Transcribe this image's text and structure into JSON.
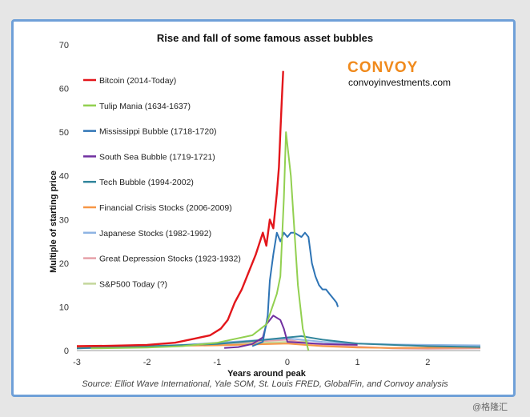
{
  "brand": {
    "name": "CONVOY",
    "url": "convoyinvestments.com"
  },
  "source_note": "Source: Elliot Wave International, Yale SOM, St. Louis FRED, GlobalFin, and Convoy analysis",
  "watermark": "@格隆汇",
  "colors": {
    "bitcoin": "#e3161b",
    "tulip": "#92d050",
    "mississippi": "#2e74b5",
    "southsea": "#7030a0",
    "tech": "#31859c",
    "financial": "#f79646",
    "japanese": "#8eb4e3",
    "depression": "#e6a0a8",
    "sp500": "#c4d79b"
  },
  "chart_data": {
    "type": "line",
    "title": "Rise and fall of some famous asset bubbles",
    "xlabel": "Years around peak",
    "ylabel": "Multiple of starting price",
    "xlim": [
      -3,
      2.75
    ],
    "ylim": [
      0,
      70
    ],
    "xticks": [
      -3,
      -2,
      -1,
      0,
      1,
      2
    ],
    "yticks": [
      0,
      10,
      20,
      30,
      40,
      50,
      60,
      70
    ],
    "grid": false,
    "legend_position": "top-left",
    "series": [
      {
        "name": "Bitcoin (2014-Today)",
        "color_key": "bitcoin",
        "points": [
          [
            -3,
            1
          ],
          [
            -2.5,
            1.1
          ],
          [
            -2,
            1.3
          ],
          [
            -1.6,
            1.8
          ],
          [
            -1.3,
            2.8
          ],
          [
            -1.1,
            3.5
          ],
          [
            -0.95,
            5
          ],
          [
            -0.85,
            7
          ],
          [
            -0.75,
            11
          ],
          [
            -0.65,
            14
          ],
          [
            -0.55,
            18
          ],
          [
            -0.45,
            22
          ],
          [
            -0.35,
            27
          ],
          [
            -0.3,
            24
          ],
          [
            -0.25,
            30
          ],
          [
            -0.2,
            28
          ],
          [
            -0.15,
            36
          ],
          [
            -0.12,
            42
          ],
          [
            -0.1,
            50
          ],
          [
            -0.08,
            57
          ],
          [
            -0.06,
            64
          ]
        ]
      },
      {
        "name": "Tulip Mania (1634-1637)",
        "color_key": "tulip",
        "points": [
          [
            -2.8,
            0.5
          ],
          [
            -2,
            0.7
          ],
          [
            -1.5,
            1
          ],
          [
            -1,
            1.8
          ],
          [
            -0.5,
            3.5
          ],
          [
            -0.3,
            6
          ],
          [
            -0.15,
            13
          ],
          [
            -0.1,
            17
          ],
          [
            -0.05,
            35
          ],
          [
            -0.02,
            50
          ],
          [
            0.05,
            40
          ],
          [
            0.15,
            15
          ],
          [
            0.22,
            5
          ],
          [
            0.3,
            0
          ]
        ]
      },
      {
        "name": "Mississippi Bubble (1718-1720)",
        "color_key": "mississippi",
        "points": [
          [
            -0.5,
            1
          ],
          [
            -0.35,
            2
          ],
          [
            -0.28,
            8
          ],
          [
            -0.25,
            16
          ],
          [
            -0.2,
            22
          ],
          [
            -0.15,
            27
          ],
          [
            -0.1,
            25
          ],
          [
            -0.05,
            27
          ],
          [
            0,
            26
          ],
          [
            0.05,
            27
          ],
          [
            0.1,
            27
          ],
          [
            0.2,
            26
          ],
          [
            0.25,
            27
          ],
          [
            0.3,
            26
          ],
          [
            0.35,
            20
          ],
          [
            0.4,
            17
          ],
          [
            0.45,
            15
          ],
          [
            0.5,
            14
          ],
          [
            0.55,
            14
          ],
          [
            0.6,
            13
          ],
          [
            0.65,
            12
          ],
          [
            0.7,
            11
          ],
          [
            0.72,
            10
          ]
        ]
      },
      {
        "name": "South Sea Bubble (1719-1721)",
        "color_key": "southsea",
        "points": [
          [
            -0.9,
            0.6
          ],
          [
            -0.7,
            0.8
          ],
          [
            -0.5,
            1.5
          ],
          [
            -0.35,
            3
          ],
          [
            -0.3,
            6
          ],
          [
            -0.2,
            8
          ],
          [
            -0.1,
            7
          ],
          [
            -0.05,
            5
          ],
          [
            0,
            2
          ],
          [
            0.2,
            1.8
          ],
          [
            0.5,
            1.5
          ],
          [
            1,
            1.3
          ]
        ]
      },
      {
        "name": "Tech Bubble (1994-2002)",
        "color_key": "tech",
        "points": [
          [
            -3,
            0.5
          ],
          [
            -2,
            1
          ],
          [
            -1,
            1.5
          ],
          [
            -0.5,
            2.2
          ],
          [
            0,
            3
          ],
          [
            0.2,
            3.3
          ],
          [
            0.5,
            2.5
          ],
          [
            1,
            1.6
          ],
          [
            2,
            1
          ],
          [
            2.75,
            0.8
          ]
        ]
      },
      {
        "name": "Financial Crisis Stocks (2006-2009)",
        "color_key": "financial",
        "points": [
          [
            -3,
            0.7
          ],
          [
            -2,
            1
          ],
          [
            -1,
            1.2
          ],
          [
            0,
            1.6
          ],
          [
            0.5,
            1
          ],
          [
            1,
            0.7
          ],
          [
            1.5,
            0.6
          ],
          [
            2.75,
            0.7
          ]
        ]
      },
      {
        "name": "Japanese Stocks (1982-1992)",
        "color_key": "japanese",
        "points": [
          [
            -3,
            0.5
          ],
          [
            -2,
            0.8
          ],
          [
            -1,
            1.8
          ],
          [
            0,
            2.8
          ],
          [
            0.5,
            2
          ],
          [
            1,
            1.6
          ],
          [
            1.5,
            1.4
          ],
          [
            2,
            1.3
          ],
          [
            2.75,
            1.2
          ]
        ]
      },
      {
        "name": "Great Depression Stocks (1923-1932)",
        "color_key": "depression",
        "points": [
          [
            -3,
            0.6
          ],
          [
            -2,
            0.9
          ],
          [
            -1,
            1.5
          ],
          [
            0,
            2.5
          ],
          [
            0.3,
            1.6
          ],
          [
            0.6,
            1.2
          ],
          [
            1,
            0.9
          ],
          [
            1.5,
            0.5
          ],
          [
            2,
            0.4
          ],
          [
            2.75,
            0.5
          ]
        ]
      },
      {
        "name": "S&P500 Today (?)",
        "color_key": "sp500",
        "points": [
          [
            -3,
            0.8
          ],
          [
            -2,
            1
          ],
          [
            -1,
            1.4
          ],
          [
            0,
            2
          ],
          [
            0.3,
            2.1
          ]
        ]
      }
    ]
  }
}
